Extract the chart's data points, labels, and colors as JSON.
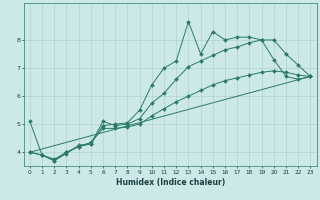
{
  "title": "",
  "xlabel": "Humidex (Indice chaleur)",
  "ylabel": "",
  "bg_color": "#cce8e8",
  "grid_color": "#aacccc",
  "line_color": "#2a7a6a",
  "xlim": [
    -0.5,
    23.5
  ],
  "ylim": [
    3.5,
    9.3
  ],
  "xticks": [
    0,
    1,
    2,
    3,
    4,
    5,
    6,
    7,
    8,
    9,
    10,
    11,
    12,
    13,
    14,
    15,
    16,
    17,
    18,
    19,
    20,
    21,
    22,
    23
  ],
  "yticks": [
    4,
    5,
    6,
    7,
    8
  ],
  "series": [
    {
      "x": [
        0,
        1,
        2,
        3,
        4,
        5,
        6,
        7,
        8,
        9,
        10,
        11,
        12,
        13,
        14,
        15,
        16,
        17,
        18,
        19,
        20,
        21,
        22,
        23
      ],
      "y": [
        5.1,
        3.9,
        3.7,
        3.95,
        4.25,
        4.3,
        4.95,
        5.0,
        5.05,
        5.5,
        6.4,
        7.0,
        7.25,
        8.65,
        7.5,
        8.3,
        8.0,
        8.1,
        8.1,
        8.0,
        7.3,
        6.7,
        6.6,
        6.7
      ],
      "marker": true
    },
    {
      "x": [
        0,
        1,
        2,
        3,
        4,
        5,
        6,
        7,
        8,
        9,
        10,
        11,
        12,
        13,
        14,
        15,
        16,
        17,
        18,
        19,
        20,
        21,
        22,
        23
      ],
      "y": [
        4.0,
        3.9,
        3.7,
        4.0,
        4.2,
        4.3,
        5.1,
        4.95,
        5.0,
        5.2,
        5.75,
        6.1,
        6.6,
        7.05,
        7.25,
        7.45,
        7.65,
        7.75,
        7.9,
        8.0,
        8.0,
        7.5,
        7.1,
        6.7
      ],
      "marker": true
    },
    {
      "x": [
        0,
        1,
        2,
        3,
        4,
        5,
        6,
        7,
        8,
        9,
        10,
        11,
        12,
        13,
        14,
        15,
        16,
        17,
        18,
        19,
        20,
        21,
        22,
        23
      ],
      "y": [
        4.0,
        3.9,
        3.75,
        4.0,
        4.2,
        4.35,
        4.85,
        4.85,
        4.9,
        5.0,
        5.3,
        5.55,
        5.8,
        6.0,
        6.2,
        6.4,
        6.55,
        6.65,
        6.75,
        6.85,
        6.9,
        6.85,
        6.75,
        6.7
      ],
      "marker": true
    },
    {
      "x": [
        0,
        23
      ],
      "y": [
        4.0,
        6.7
      ],
      "marker": false
    }
  ]
}
